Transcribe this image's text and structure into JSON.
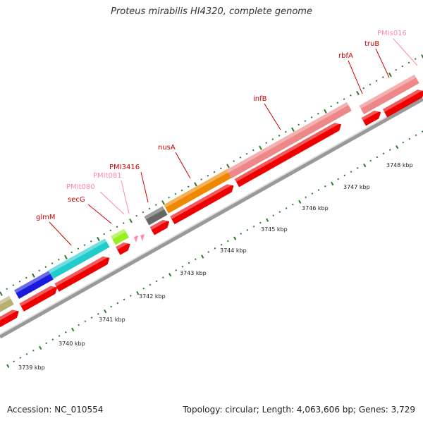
{
  "title": "Proteus mirabilis HI4320, complete genome",
  "footer": {
    "accession": "Accession: NC_010554",
    "summary": "Topology: circular; Length: 4,063,606 bp; Genes: 3,729"
  },
  "colors": {
    "cds": "#ee0000",
    "rna_label": "#ff88aa",
    "gene_label": "#cc0000",
    "backbone": "#999999",
    "tick": "#2a7a2a"
  },
  "scale_labels": [
    "3739 kbp",
    "3740 kbp",
    "3741 kbp",
    "3742 kbp",
    "3743 kbp",
    "3744 kbp",
    "3745 kbp",
    "3746 kbp",
    "3747 kbp",
    "3748 kbp"
  ],
  "gene_labels": [
    {
      "text": "glmM",
      "kind": "gene"
    },
    {
      "text": "secG",
      "kind": "gene"
    },
    {
      "text": "PMIt080",
      "kind": "rna"
    },
    {
      "text": "PMIt081",
      "kind": "rna"
    },
    {
      "text": "PMI3416",
      "kind": "gene"
    },
    {
      "text": "nusA",
      "kind": "gene"
    },
    {
      "text": "infB",
      "kind": "gene"
    },
    {
      "text": "rbfA",
      "kind": "gene"
    },
    {
      "text": "truB",
      "kind": "gene"
    },
    {
      "text": "PMIs016",
      "kind": "rna"
    }
  ],
  "feature_colors": {
    "olive": "#b8b070",
    "blue": "#1a1add",
    "cyan": "#22cccc",
    "lime": "#99ee22",
    "gray": "#666666",
    "orange": "#ee8800",
    "pink": "#ee8888"
  }
}
